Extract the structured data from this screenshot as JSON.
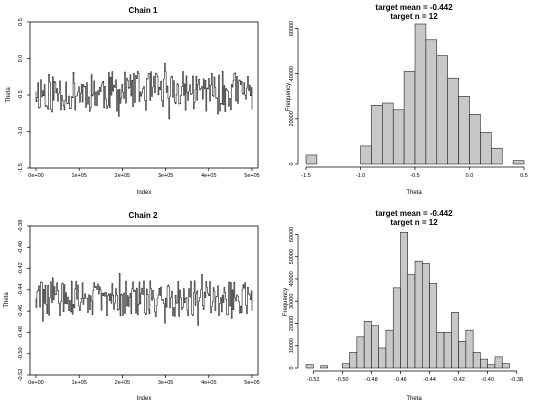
{
  "chart_data": [
    {
      "type": "line",
      "title": "Chain 1",
      "xlabel": "Index",
      "ylabel": "Theta",
      "xlim": [
        0,
        500000
      ],
      "ylim": [
        -1.5,
        0.5
      ],
      "xticks": [
        0,
        100000,
        200000,
        300000,
        400000,
        500000
      ],
      "xtick_labels": [
        "0e+00",
        "1e+05",
        "2e+05",
        "3e+05",
        "4e+05",
        "5e+05"
      ],
      "yticks": [
        -1.5,
        -1.0,
        -0.5,
        0.0,
        0.5
      ],
      "ytick_labels": [
        "-1.5",
        "-1.0",
        "-0.5",
        "0.0",
        "0.5"
      ],
      "x_points": 240,
      "series": [
        {
          "center": -0.45,
          "spread": 0.55,
          "seed": 11
        }
      ]
    },
    {
      "type": "histogram",
      "title": "target mean = -0.442",
      "subtitle": "target n = 12",
      "xlabel": "Theta",
      "ylabel": "Frequency",
      "xlim": [
        -1.5,
        0.5
      ],
      "ylim": [
        0,
        62000
      ],
      "xticks": [
        -1.5,
        -1.0,
        -0.5,
        0.0,
        0.5
      ],
      "xtick_labels": [
        "-1.5",
        "-1.0",
        "-0.5",
        "0.0",
        "0.5"
      ],
      "yticks": [
        0,
        20000,
        40000,
        60000
      ],
      "ytick_labels": [
        "0",
        "20000",
        "40000",
        "60000"
      ],
      "bins": [
        [
          -1.5,
          -1.4,
          4000
        ],
        [
          -1.4,
          -1.3,
          0
        ],
        [
          -1.3,
          -1.2,
          0
        ],
        [
          -1.2,
          -1.1,
          0
        ],
        [
          -1.1,
          -1.0,
          0
        ],
        [
          -1.0,
          -0.9,
          8000
        ],
        [
          -0.9,
          -0.8,
          26000
        ],
        [
          -0.8,
          -0.7,
          27000
        ],
        [
          -0.7,
          -0.6,
          24000
        ],
        [
          -0.6,
          -0.5,
          41000
        ],
        [
          -0.5,
          -0.4,
          62000
        ],
        [
          -0.4,
          -0.3,
          55000
        ],
        [
          -0.3,
          -0.2,
          48000
        ],
        [
          -0.2,
          -0.1,
          38000
        ],
        [
          -0.1,
          0.0,
          30000
        ],
        [
          0.0,
          0.1,
          22000
        ],
        [
          0.1,
          0.2,
          14000
        ],
        [
          0.2,
          0.3,
          7000
        ],
        [
          0.3,
          0.4,
          0
        ],
        [
          0.4,
          0.5,
          1500
        ]
      ]
    },
    {
      "type": "line",
      "title": "Chain 2",
      "xlabel": "Index",
      "ylabel": "Theta",
      "xlim": [
        0,
        500000
      ],
      "ylim": [
        -0.52,
        -0.38
      ],
      "xticks": [
        0,
        100000,
        200000,
        300000,
        400000,
        500000
      ],
      "xtick_labels": [
        "0e+00",
        "1e+05",
        "2e+05",
        "3e+05",
        "4e+05",
        "5e+05"
      ],
      "yticks": [
        -0.52,
        -0.5,
        -0.48,
        -0.46,
        -0.44,
        -0.42,
        -0.4,
        -0.38
      ],
      "ytick_labels": [
        "-0.52",
        "-0.50",
        "-0.48",
        "-0.46",
        "-0.44",
        "-0.42",
        "-0.40",
        "-0.38"
      ],
      "x_points": 240,
      "series": [
        {
          "center": -0.448,
          "spread": 0.034,
          "seed": 29
        }
      ]
    },
    {
      "type": "histogram",
      "title": "target mean = -0.442",
      "subtitle": "target n = 12",
      "xlabel": "Theta",
      "ylabel": "Frequency",
      "xlim": [
        -0.525,
        -0.375
      ],
      "ylim": [
        0,
        62000
      ],
      "xticks": [
        -0.52,
        -0.5,
        -0.48,
        -0.46,
        -0.44,
        -0.42,
        -0.4,
        -0.38
      ],
      "xtick_labels": [
        "-0.52",
        "-0.50",
        "-0.48",
        "-0.46",
        "-0.44",
        "-0.42",
        "-0.40",
        "-0.38"
      ],
      "yticks": [
        0,
        10000,
        20000,
        30000,
        40000,
        50000,
        60000
      ],
      "ytick_labels": [
        "0",
        "10000",
        "20000",
        "30000",
        "40000",
        "50000",
        "60000"
      ],
      "bins": [
        [
          -0.525,
          -0.52,
          1500
        ],
        [
          -0.52,
          -0.515,
          0
        ],
        [
          -0.515,
          -0.51,
          1000
        ],
        [
          -0.51,
          -0.505,
          0
        ],
        [
          -0.505,
          -0.5,
          0
        ],
        [
          -0.5,
          -0.495,
          2000
        ],
        [
          -0.495,
          -0.49,
          7000
        ],
        [
          -0.49,
          -0.485,
          14000
        ],
        [
          -0.485,
          -0.48,
          21000
        ],
        [
          -0.48,
          -0.475,
          19000
        ],
        [
          -0.475,
          -0.47,
          9000
        ],
        [
          -0.47,
          -0.465,
          17000
        ],
        [
          -0.465,
          -0.46,
          36000
        ],
        [
          -0.46,
          -0.455,
          61000
        ],
        [
          -0.455,
          -0.45,
          42000
        ],
        [
          -0.45,
          -0.445,
          48000
        ],
        [
          -0.445,
          -0.44,
          47000
        ],
        [
          -0.44,
          -0.435,
          38000
        ],
        [
          -0.435,
          -0.43,
          16000
        ],
        [
          -0.43,
          -0.425,
          16000
        ],
        [
          -0.425,
          -0.42,
          25000
        ],
        [
          -0.42,
          -0.415,
          12000
        ],
        [
          -0.415,
          -0.41,
          17000
        ],
        [
          -0.41,
          -0.405,
          7000
        ],
        [
          -0.405,
          -0.4,
          4000
        ],
        [
          -0.4,
          -0.395,
          1500
        ],
        [
          -0.395,
          -0.39,
          5000
        ],
        [
          -0.39,
          -0.385,
          2000
        ]
      ]
    }
  ]
}
